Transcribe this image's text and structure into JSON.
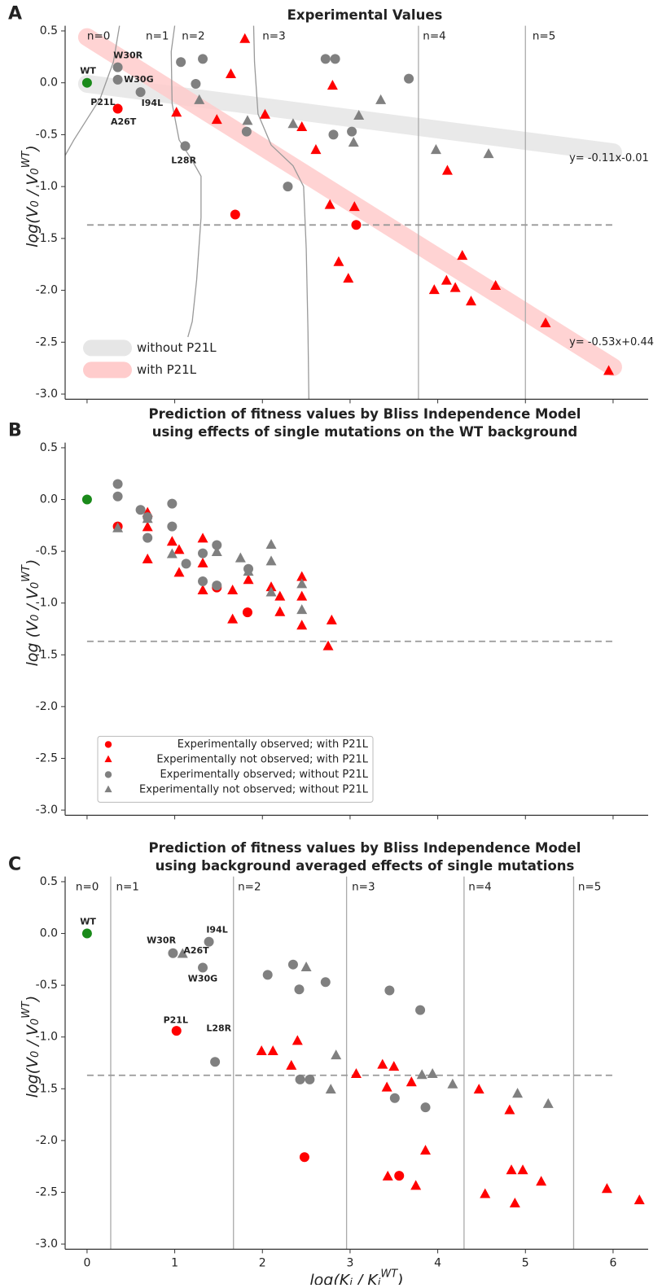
{
  "chart_data": [
    {
      "type": "scatter",
      "panel_label": "A",
      "title": [
        "Experimental Values"
      ],
      "ylabel": [
        "log(V",
        "0",
        " / V",
        "0",
        "WT",
        ")"
      ],
      "xlim": [
        -0.25,
        6.4
      ],
      "ylim": [
        -3.05,
        0.55
      ],
      "xticks": [
        0,
        1,
        2,
        3,
        4,
        5,
        6
      ],
      "xtick_labels": false,
      "yticks": [
        0.5,
        {
          "value": 0,
          "label": "0.0"
        },
        -0.5,
        {
          "value": -1,
          "label": "-1.0"
        },
        -1.5,
        {
          "value": -2,
          "label": "-2.0"
        },
        -2.5,
        {
          "value": -3,
          "label": "-3.0"
        }
      ],
      "region_lines": [
        3.78,
        5.0
      ],
      "region_curves": [
        {
          "x": [
            0.37,
            0.3,
            0.15,
            0.0,
            -0.15,
            -0.25
          ],
          "y": [
            0.55,
            0.2,
            -0.15,
            -0.35,
            -0.55,
            -0.7
          ]
        },
        {
          "x": [
            1.0,
            0.96,
            0.97,
            1.05,
            1.2,
            1.3,
            1.3,
            1.25,
            1.2,
            1.15
          ],
          "y": [
            0.55,
            0.3,
            -0.2,
            -0.55,
            -0.75,
            -0.9,
            -1.3,
            -1.9,
            -2.3,
            -2.45
          ]
        },
        {
          "x": [
            1.9,
            1.91,
            1.95,
            2.1,
            2.35,
            2.47,
            2.5,
            2.52,
            2.53
          ],
          "y": [
            0.55,
            0.2,
            -0.3,
            -0.6,
            -0.8,
            -1.0,
            -1.6,
            -2.4,
            -3.05
          ]
        }
      ],
      "region_labels": [
        {
          "text": "n=0",
          "x": 0.0,
          "y": 0.45
        },
        {
          "text": "n=1",
          "x": 0.67,
          "y": 0.45
        },
        {
          "text": "n=2",
          "x": 1.08,
          "y": 0.45
        },
        {
          "text": "n=3",
          "x": 2.0,
          "y": 0.45
        },
        {
          "text": "n=4",
          "x": 3.83,
          "y": 0.45
        },
        {
          "text": "n=5",
          "x": 5.08,
          "y": 0.45
        }
      ],
      "hline": {
        "y": -1.37,
        "xrange": [
          0,
          6
        ]
      },
      "fits": [
        {
          "name": "without P21L",
          "color": "#e6e6e6",
          "slope": -0.11,
          "intercept": -0.01,
          "xrange": [
            0,
            6
          ],
          "label": "y= -0.11x-0.01",
          "label_x": 5.5,
          "label_y": -0.73
        },
        {
          "name": "with P21L",
          "color": "#ffcccc",
          "slope": -0.53,
          "intercept": 0.44,
          "xrange": [
            0,
            6
          ],
          "label": "y= -0.53x+0.44",
          "label_x": 5.5,
          "label_y": -2.5
        }
      ],
      "legend": {
        "source": "fits",
        "loc": "lower left"
      },
      "series": [
        {
          "marker": "o",
          "color": "#1a8a1a",
          "x": [
            0
          ],
          "values": [
            0
          ]
        },
        {
          "marker": "o",
          "color": "#ff0000",
          "x": [
            0.35,
            1.69,
            3.07
          ],
          "values": [
            -0.25,
            -1.27,
            -1.37
          ]
        },
        {
          "marker": "^",
          "color": "#ff0000",
          "x": [
            1.8,
            1.64,
            1.02,
            1.48,
            2.03,
            2.45,
            2.61,
            2.8,
            2.77,
            3.05,
            2.87,
            2.98,
            4.11,
            3.96,
            4.1,
            4.2,
            4.28,
            4.38,
            4.66,
            5.23,
            5.95
          ],
          "values": [
            0.42,
            0.08,
            -0.29,
            -0.36,
            -0.31,
            -0.43,
            -0.65,
            -0.03,
            -1.18,
            -1.2,
            -1.73,
            -1.89,
            -0.85,
            -2.0,
            -1.91,
            -1.98,
            -1.67,
            -2.11,
            -1.96,
            -2.32,
            -2.78
          ]
        },
        {
          "marker": "o",
          "color": "#808080",
          "x": [
            0.35,
            0.35,
            0.61,
            1.12,
            1.07,
            1.32,
            1.24,
            1.82,
            2.29,
            2.72,
            2.83,
            2.81,
            3.02,
            3.67
          ],
          "values": [
            0.15,
            0.03,
            -0.09,
            -0.61,
            0.2,
            0.23,
            -0.01,
            -0.47,
            -1.0,
            0.23,
            0.23,
            -0.5,
            -0.47,
            0.04
          ]
        },
        {
          "marker": "^",
          "color": "#808080",
          "x": [
            1.28,
            1.83,
            2.35,
            3.1,
            3.04,
            3.35,
            3.98,
            4.58
          ],
          "values": [
            -0.17,
            -0.37,
            -0.4,
            -0.32,
            -0.58,
            -0.17,
            -0.65,
            -0.69
          ]
        }
      ],
      "annotations": [
        {
          "text": "WT",
          "x": -0.08,
          "y": 0.11,
          "color": "#1a8a1a"
        },
        {
          "text": "W30R",
          "x": 0.3,
          "y": 0.26,
          "color": "#222222"
        },
        {
          "text": "W30G",
          "x": 0.42,
          "y": 0.03,
          "color": "#222222"
        },
        {
          "text": "I94L",
          "x": 0.62,
          "y": -0.2,
          "color": "#222222"
        },
        {
          "text": "P21L",
          "x": 0.04,
          "y": -0.19,
          "color": "#ff0000"
        },
        {
          "text": "A26T",
          "x": 0.27,
          "y": -0.38,
          "color": "#222222"
        },
        {
          "text": "L28R",
          "x": 0.96,
          "y": -0.75,
          "color": "#222222"
        }
      ]
    },
    {
      "type": "scatter",
      "panel_label": "B",
      "title": [
        "Prediction of fitness values by Bliss Independence Model",
        "using effects of single mutations on the WT background"
      ],
      "ylabel": [
        "log (V",
        "0",
        " / V",
        "0",
        "WT",
        ")"
      ],
      "xlim": [
        -0.25,
        6.4
      ],
      "ylim": [
        -3.05,
        0.55
      ],
      "xticks": [
        0,
        1,
        2,
        3,
        4,
        5,
        6
      ],
      "xtick_labels": false,
      "yticks": [
        0.5,
        {
          "value": 0,
          "label": "0.0"
        },
        -0.5,
        {
          "value": -1,
          "label": "-1.0"
        },
        -1.5,
        {
          "value": -2,
          "label": "-2.0"
        },
        -2.5,
        {
          "value": -3,
          "label": "-3.0"
        }
      ],
      "hline": {
        "y": -1.37,
        "xrange": [
          0,
          6
        ]
      },
      "legend": {
        "source": "series",
        "loc": "lower left"
      },
      "series": [
        {
          "marker": "o",
          "color": "#1a8a1a",
          "x": [
            0
          ],
          "values": [
            0
          ]
        },
        {
          "name": "Experimentally observed; with P21L",
          "marker": "o",
          "color": "#ff0000",
          "x": [
            0.35,
            1.48,
            1.83
          ],
          "values": [
            -0.26,
            -0.85,
            -1.09
          ]
        },
        {
          "name": "Experimentally not observed; with P21L",
          "marker": "^",
          "color": "#ff0000",
          "x": [
            0.69,
            0.69,
            0.69,
            0.97,
            1.05,
            1.05,
            1.32,
            1.32,
            1.32,
            1.66,
            1.66,
            1.84,
            2.1,
            2.2,
            2.2,
            2.45,
            2.45,
            2.45,
            2.79,
            2.75
          ],
          "values": [
            -0.13,
            -0.27,
            -0.58,
            -0.41,
            -0.49,
            -0.71,
            -0.38,
            -0.62,
            -0.88,
            -0.88,
            -1.16,
            -0.78,
            -0.85,
            -0.94,
            -1.09,
            -0.75,
            -0.94,
            -1.22,
            -1.17,
            -1.42
          ]
        },
        {
          "name": "Experimentally observed; without P21L",
          "marker": "o",
          "color": "#808080",
          "x": [
            0.35,
            0.35,
            0.61,
            0.69,
            0.69,
            0.97,
            0.97,
            1.13,
            1.32,
            1.32,
            1.48,
            1.48,
            1.84
          ],
          "values": [
            0.15,
            0.03,
            -0.1,
            -0.17,
            -0.37,
            -0.04,
            -0.26,
            -0.62,
            -0.52,
            -0.79,
            -0.44,
            -0.83,
            -0.67
          ]
        },
        {
          "name": "Experimentally not observed; without P21L",
          "marker": "^",
          "color": "#808080",
          "x": [
            0.35,
            0.69,
            0.97,
            1.48,
            1.75,
            2.1,
            2.1,
            2.1,
            2.45,
            2.45,
            1.84
          ],
          "values": [
            -0.28,
            -0.19,
            -0.53,
            -0.51,
            -0.57,
            -0.44,
            -0.6,
            -0.9,
            -0.82,
            -1.07,
            -0.7
          ]
        }
      ]
    },
    {
      "type": "scatter",
      "panel_label": "C",
      "title": [
        "Prediction of fitness values by Bliss Independence Model",
        "using background averaged effects of single mutations"
      ],
      "ylabel": [
        "log(V",
        "0",
        " / V",
        "0",
        "WT",
        ")"
      ],
      "xlabel": [
        "log(K",
        "i",
        " / K",
        "i",
        "WT",
        ")"
      ],
      "xlim": [
        -0.25,
        6.4
      ],
      "ylim": [
        -3.05,
        0.55
      ],
      "xticks": [
        0,
        1,
        2,
        3,
        4,
        5,
        6
      ],
      "yticks": [
        0.5,
        {
          "value": 0,
          "label": "0.0"
        },
        -0.5,
        {
          "value": -1,
          "label": "-1.0"
        },
        -1.5,
        {
          "value": -2,
          "label": "-2.0"
        },
        -2.5,
        {
          "value": -3,
          "label": "-3.0"
        }
      ],
      "region_lines": [
        0.27,
        1.67,
        2.96,
        4.3,
        5.55
      ],
      "region_labels": [
        {
          "text": "n=0",
          "x": -0.13,
          "y": 0.45
        },
        {
          "text": "n=1",
          "x": 0.33,
          "y": 0.45
        },
        {
          "text": "n=2",
          "x": 1.72,
          "y": 0.45
        },
        {
          "text": "n=3",
          "x": 3.02,
          "y": 0.45
        },
        {
          "text": "n=4",
          "x": 4.35,
          "y": 0.45
        },
        {
          "text": "n=5",
          "x": 5.6,
          "y": 0.45
        }
      ],
      "hline": {
        "y": -1.37,
        "xrange": [
          0,
          6
        ]
      },
      "series": [
        {
          "marker": "o",
          "color": "#1a8a1a",
          "x": [
            0
          ],
          "values": [
            0
          ]
        },
        {
          "marker": "o",
          "color": "#ff0000",
          "x": [
            1.02,
            2.48,
            3.56
          ],
          "values": [
            -0.94,
            -2.16,
            -2.34
          ]
        },
        {
          "marker": "^",
          "color": "#ff0000",
          "x": [
            1.99,
            2.12,
            2.33,
            2.4,
            3.07,
            3.37,
            3.5,
            3.42,
            3.7,
            3.86,
            3.43,
            3.75,
            4.47,
            4.82,
            4.54,
            4.84,
            4.97,
            4.88,
            5.18,
            5.93,
            6.3
          ],
          "values": [
            -1.14,
            -1.14,
            -1.28,
            -1.04,
            -1.36,
            -1.27,
            -1.29,
            -1.49,
            -1.44,
            -2.1,
            -2.35,
            -2.44,
            -1.51,
            -1.71,
            -2.52,
            -2.29,
            -2.29,
            -2.61,
            -2.4,
            -2.47,
            -2.58
          ]
        },
        {
          "marker": "o",
          "color": "#808080",
          "x": [
            0.98,
            1.32,
            1.39,
            1.46,
            2.06,
            2.35,
            2.42,
            2.72,
            2.43,
            2.54,
            3.45,
            3.8,
            3.51,
            3.86
          ],
          "values": [
            -0.19,
            -0.33,
            -0.08,
            -1.24,
            -0.4,
            -0.3,
            -0.54,
            -0.47,
            -1.41,
            -1.41,
            -0.55,
            -0.74,
            -1.59,
            -1.68
          ]
        },
        {
          "marker": "^",
          "color": "#808080",
          "x": [
            1.09,
            2.5,
            2.84,
            2.78,
            3.82,
            3.94,
            4.17,
            4.91,
            5.26
          ],
          "values": [
            -0.2,
            -0.33,
            -1.18,
            -1.51,
            -1.37,
            -1.36,
            -1.46,
            -1.55,
            -1.65
          ]
        }
      ],
      "annotations": [
        {
          "text": "WT",
          "x": -0.08,
          "y": 0.11,
          "color": "#1a8a1a"
        },
        {
          "text": "W30R",
          "x": 0.68,
          "y": -0.07,
          "color": "#222222"
        },
        {
          "text": "A26T",
          "x": 1.1,
          "y": -0.17,
          "color": "#222222"
        },
        {
          "text": "I94L",
          "x": 1.36,
          "y": 0.03,
          "color": "#222222"
        },
        {
          "text": "W30G",
          "x": 1.15,
          "y": -0.44,
          "color": "#222222"
        },
        {
          "text": "P21L",
          "x": 0.87,
          "y": -0.84,
          "color": "#ff0000"
        },
        {
          "text": "L28R",
          "x": 1.36,
          "y": -0.92,
          "color": "#222222"
        }
      ]
    }
  ]
}
